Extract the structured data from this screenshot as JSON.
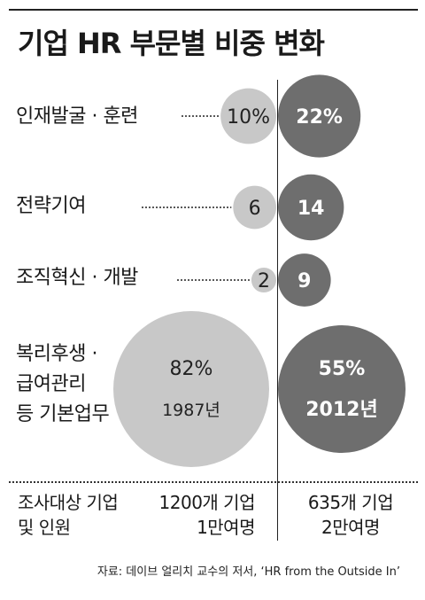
{
  "title": "기업 HR 부문별 비중 변화",
  "chart_data": {
    "type": "bubble",
    "title": "기업 HR 부문별 비중 변화",
    "periods": [
      "1987년",
      "2012년"
    ],
    "categories": [
      "인재발굴 · 훈련",
      "전략기여",
      "조직혁신 · 개발",
      "복리후생 ·\n급여관리\n등 기본업무"
    ],
    "series": [
      {
        "name": "1987년",
        "values": [
          10,
          6,
          2,
          82
        ],
        "labels": [
          "10%",
          "6",
          "2",
          "82%"
        ]
      },
      {
        "name": "2012년",
        "values": [
          22,
          14,
          9,
          55
        ],
        "labels": [
          "22%",
          "14",
          "9",
          "55%"
        ]
      }
    ],
    "unit": "%",
    "colors": {
      "1987": "#c8c8c8",
      "2012": "#6e6e6e"
    }
  },
  "footer": {
    "row_label": "조사대상 기업\n및 인원",
    "col1987": "1200개 기업\n1만여명",
    "col2012": "635개 기업\n2만여명"
  },
  "source": "자료: 데이브 얼리치 교수의 저서, ‘HR from the Outside In’"
}
